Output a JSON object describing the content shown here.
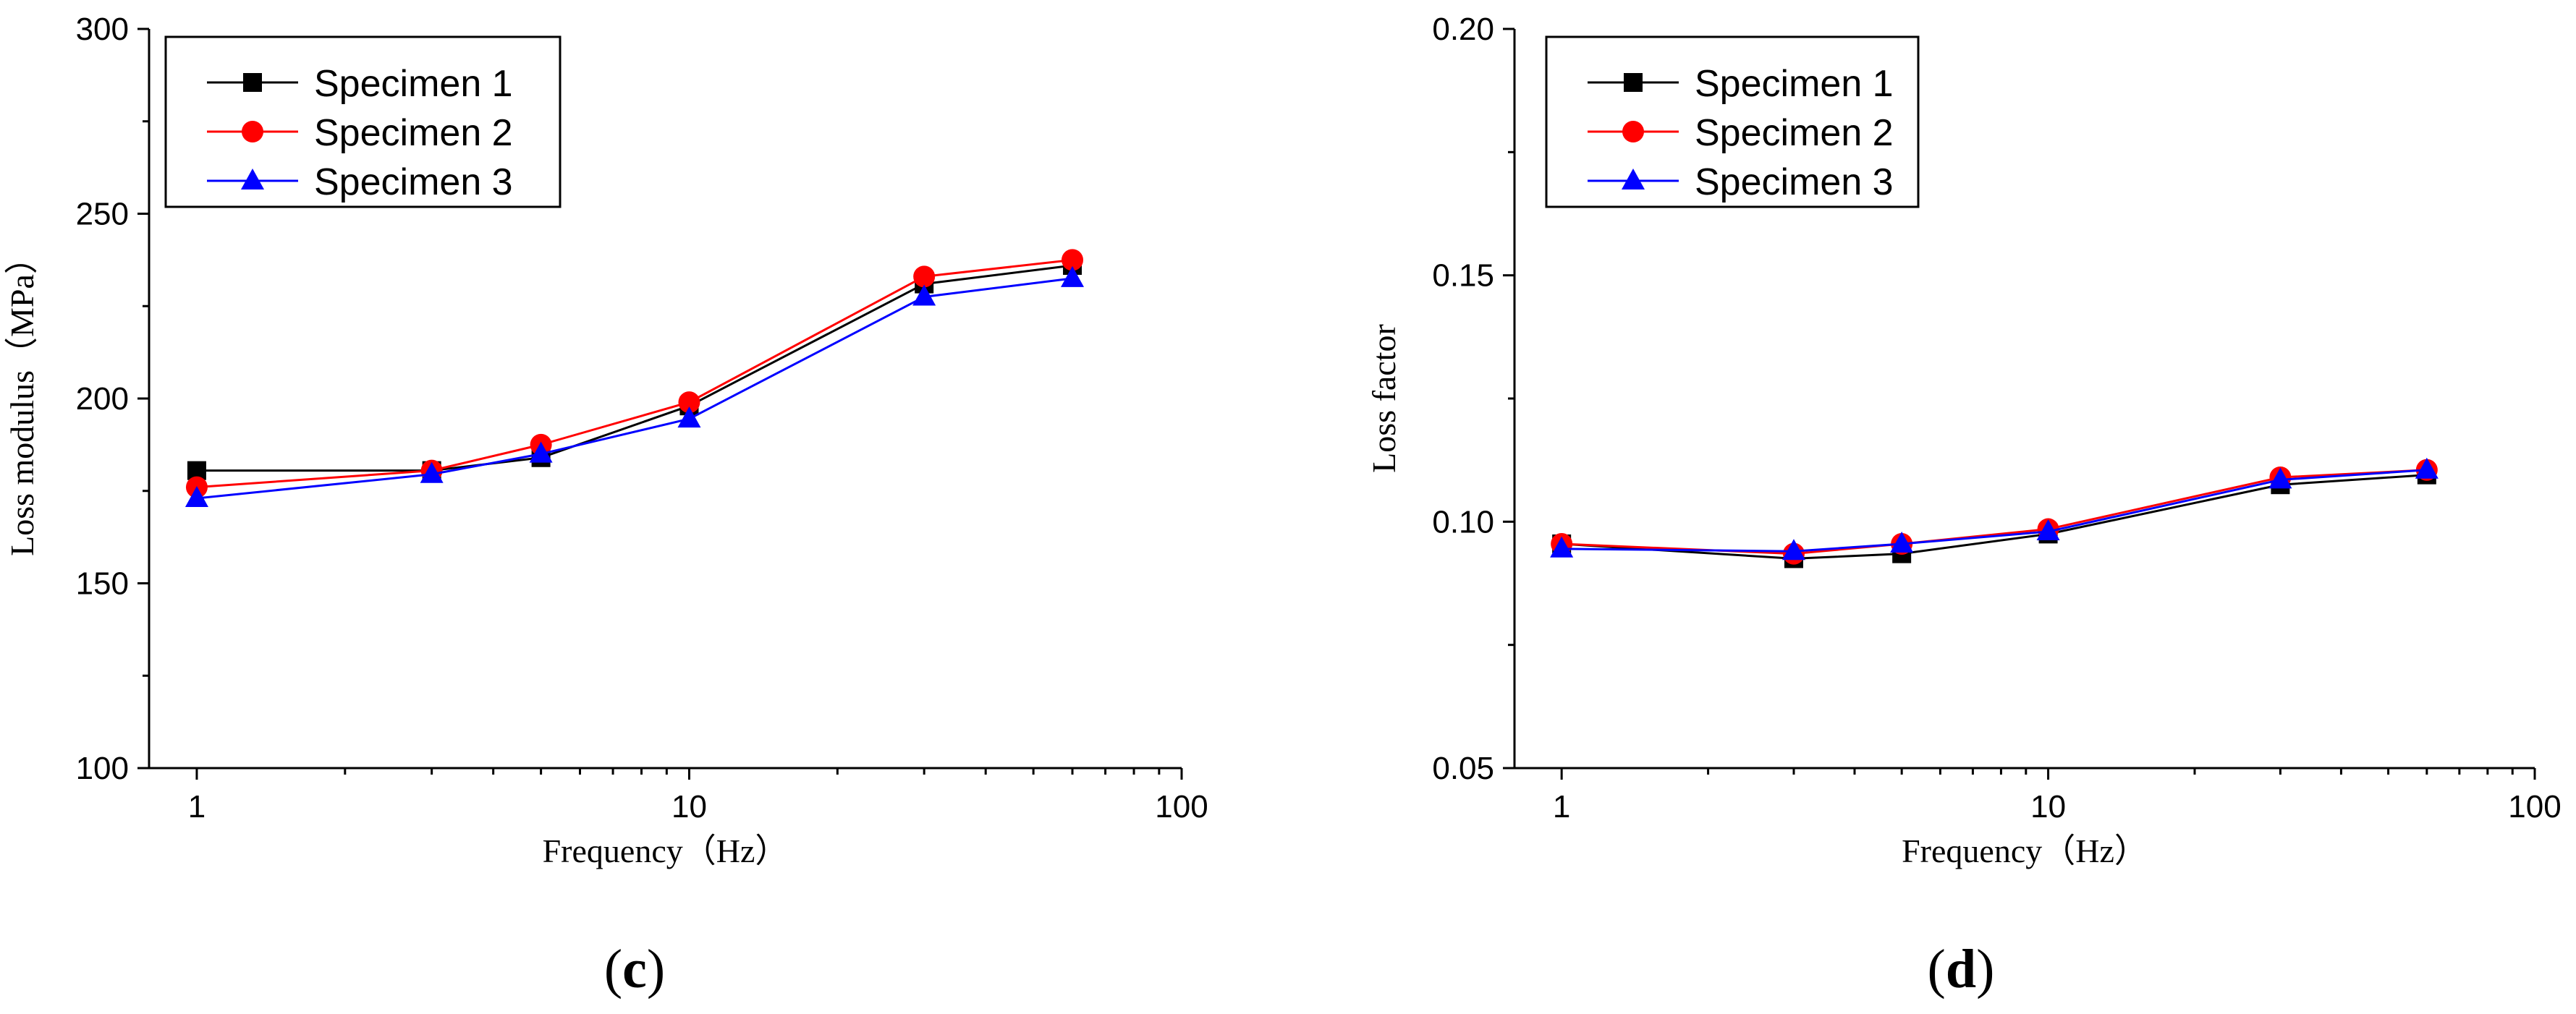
{
  "chart_data": [
    {
      "type": "line",
      "panel_label_open": "(",
      "panel_label_letter": "c",
      "panel_label_close": ")",
      "xlabel": "Frequency（Hz）",
      "ylabel": "Loss modulus（MPa）",
      "xscale": "log",
      "xlim": [
        0.8,
        100
      ],
      "ylim": [
        100,
        300
      ],
      "xticks": [
        1,
        10,
        100
      ],
      "xtick_labels": [
        "1",
        "10",
        "100"
      ],
      "yticks": [
        100,
        150,
        200,
        250,
        300
      ],
      "ytick_labels": [
        "100",
        "150",
        "200",
        "250",
        "300"
      ],
      "legend_position": "top-left",
      "x": [
        1,
        3,
        5,
        10,
        30,
        60
      ],
      "series": [
        {
          "name": "Specimen 1",
          "color": "#000000",
          "marker": "square",
          "values": [
            180.5,
            180.5,
            184,
            198,
            231,
            236
          ]
        },
        {
          "name": "Specimen 2",
          "color": "#ff0000",
          "marker": "circle",
          "values": [
            176,
            180.5,
            187.5,
            199,
            233,
            237.5
          ]
        },
        {
          "name": "Specimen 3",
          "color": "#0000ff",
          "marker": "triangle",
          "values": [
            173,
            179.5,
            185,
            194.5,
            227.5,
            232.5
          ]
        }
      ]
    },
    {
      "type": "line",
      "panel_label_open": "(",
      "panel_label_letter": "d",
      "panel_label_close": ")",
      "xlabel": "Frequency（Hz）",
      "ylabel": "Loss factor",
      "xscale": "log",
      "xlim": [
        0.8,
        100
      ],
      "ylim": [
        0.05,
        0.2
      ],
      "xticks": [
        1,
        10,
        100
      ],
      "xtick_labels": [
        "1",
        "10",
        "100"
      ],
      "yticks": [
        0.05,
        0.1,
        0.15,
        0.2
      ],
      "ytick_labels": [
        "0.05",
        "0.10",
        "0.15",
        "0.20"
      ],
      "legend_position": "top-left",
      "x": [
        1,
        3,
        5,
        10,
        30,
        60
      ],
      "series": [
        {
          "name": "Specimen 1",
          "color": "#000000",
          "marker": "square",
          "values": [
            0.0955,
            0.0925,
            0.0935,
            0.0975,
            0.1075,
            0.1095
          ]
        },
        {
          "name": "Specimen 2",
          "color": "#ff0000",
          "marker": "circle",
          "values": [
            0.0955,
            0.0935,
            0.0955,
            0.0985,
            0.109,
            0.1105
          ]
        },
        {
          "name": "Specimen 3",
          "color": "#0000ff",
          "marker": "triangle",
          "values": [
            0.0945,
            0.094,
            0.0955,
            0.098,
            0.1085,
            0.1105
          ]
        }
      ]
    }
  ]
}
